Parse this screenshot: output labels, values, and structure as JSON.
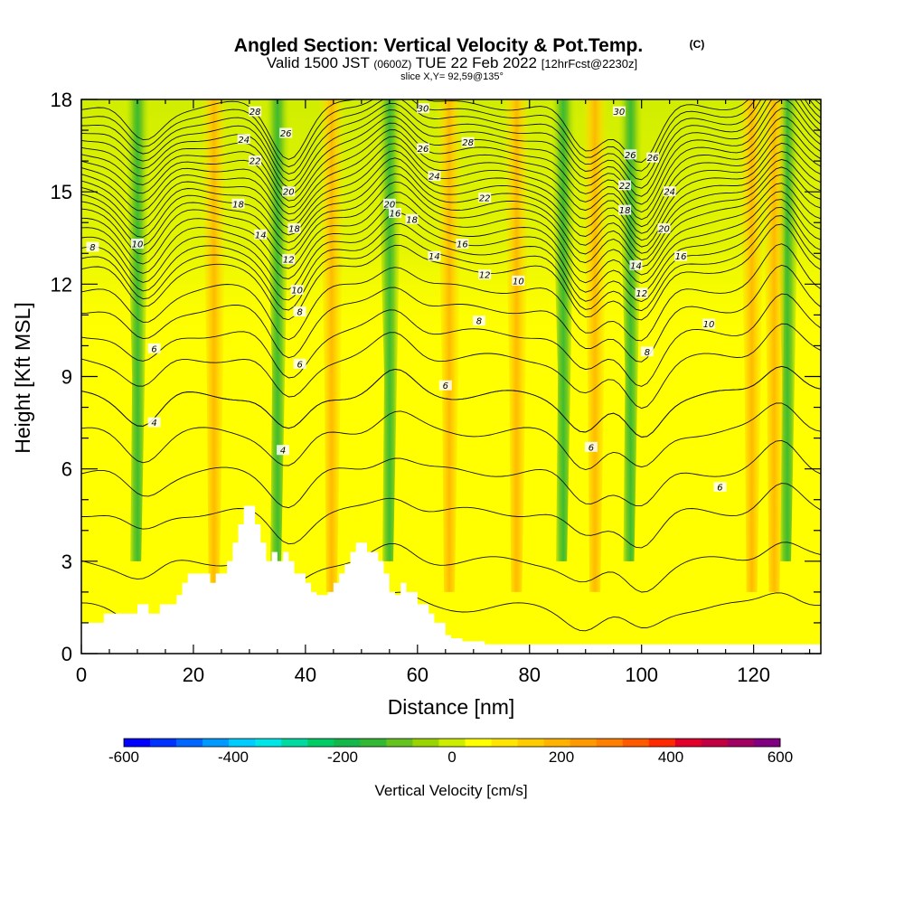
{
  "header": {
    "title": "Angled Section: Vertical Velocity & Pot.Temp.",
    "title_unit": "(C)",
    "valid_prefix": "Valid 1500 JST",
    "valid_utc": "(0600Z)",
    "valid_date": "TUE 22 Feb 2022",
    "forecast": "[12hrFcst@2230z]",
    "slice": "slice X,Y= 92,59@135°"
  },
  "chart_data": {
    "type": "contour-section",
    "xlabel": "Distance [nm]",
    "ylabel": "Height [Kft MSL]",
    "xlim": [
      0,
      132
    ],
    "ylim": [
      0,
      18
    ],
    "x_ticks": [
      0,
      20,
      40,
      60,
      80,
      100,
      120
    ],
    "y_ticks": [
      0,
      3,
      6,
      9,
      12,
      15,
      18
    ],
    "colorbar": {
      "title": "Vertical Velocity [cm/s]",
      "range": [
        -600,
        600
      ],
      "ticks": [
        -600,
        -400,
        -200,
        0,
        200,
        400,
        600
      ],
      "colors": [
        "#0000ff",
        "#0033ff",
        "#0066ff",
        "#0099ff",
        "#00ccff",
        "#00e5e5",
        "#00d9a0",
        "#00cc66",
        "#14b84a",
        "#33b833",
        "#66c21f",
        "#99d400",
        "#ccec00",
        "#ffff00",
        "#ffe500",
        "#ffcc00",
        "#ffb200",
        "#ff9900",
        "#ff7f00",
        "#ff5a00",
        "#ff2a00",
        "#e0002a",
        "#c00040",
        "#a00060",
        "#800080"
      ]
    },
    "terrain": {
      "x": [
        0,
        3,
        4,
        10,
        11,
        12,
        14,
        17,
        18,
        19,
        20,
        23,
        24,
        26,
        27,
        28,
        29,
        31,
        32,
        33,
        34,
        35,
        36,
        37,
        38,
        40,
        41,
        42,
        44,
        45,
        46,
        47,
        48,
        49,
        51,
        53,
        54,
        55,
        56,
        57,
        58,
        60,
        62,
        63,
        65,
        66,
        68,
        72,
        75,
        132
      ],
      "height_kft": [
        1.0,
        1.0,
        1.3,
        1.6,
        1.6,
        1.3,
        1.6,
        1.9,
        2.3,
        2.6,
        2.6,
        2.3,
        2.6,
        3.0,
        3.6,
        4.2,
        4.8,
        4.2,
        3.6,
        3.0,
        3.3,
        3.0,
        3.3,
        3.0,
        2.6,
        2.3,
        2.0,
        1.9,
        2.0,
        2.3,
        2.6,
        2.9,
        3.3,
        3.6,
        3.3,
        3.0,
        2.6,
        2.0,
        1.9,
        2.3,
        2.0,
        1.6,
        1.3,
        1.0,
        0.6,
        0.5,
        0.4,
        0.3,
        0.3,
        0.3
      ]
    },
    "theta_contours": [
      {
        "level": 4,
        "mean_height_kft": 7.2
      },
      {
        "level": 6,
        "mean_height_kft": 9.6
      },
      {
        "level": 8,
        "mean_height_kft": 11.2
      },
      {
        "level": 10,
        "mean_height_kft": 12.5
      },
      {
        "level": 12,
        "mean_height_kft": 13.1
      },
      {
        "level": 14,
        "mean_height_kft": 13.7
      },
      {
        "level": 16,
        "mean_height_kft": 14.3
      },
      {
        "level": 18,
        "mean_height_kft": 14.8
      },
      {
        "level": 20,
        "mean_height_kft": 15.3
      },
      {
        "level": 22,
        "mean_height_kft": 15.8
      },
      {
        "level": 24,
        "mean_height_kft": 16.3
      },
      {
        "level": 26,
        "mean_height_kft": 16.8
      },
      {
        "level": 28,
        "mean_height_kft": 17.3
      },
      {
        "level": 30,
        "mean_height_kft": 17.8
      }
    ],
    "updraft_bands_x": [
      11,
      36,
      56,
      87,
      99,
      127
    ],
    "downdraft_bands_x": [
      24,
      45,
      66,
      78,
      92,
      120,
      124
    ],
    "contour_labels": [
      {
        "text": "8",
        "x": 2,
        "y": 13.2
      },
      {
        "text": "10",
        "x": 10,
        "y": 13.3
      },
      {
        "text": "28",
        "x": 31,
        "y": 17.6
      },
      {
        "text": "26",
        "x": 36.5,
        "y": 16.9
      },
      {
        "text": "24",
        "x": 29,
        "y": 16.7
      },
      {
        "text": "22",
        "x": 31,
        "y": 16.0
      },
      {
        "text": "20",
        "x": 37,
        "y": 15.0
      },
      {
        "text": "18",
        "x": 28,
        "y": 14.6
      },
      {
        "text": "18",
        "x": 38,
        "y": 13.8
      },
      {
        "text": "16",
        "x": 56,
        "y": 14.3
      },
      {
        "text": "14",
        "x": 32,
        "y": 13.6
      },
      {
        "text": "12",
        "x": 37,
        "y": 12.8
      },
      {
        "text": "10",
        "x": 38.5,
        "y": 11.8
      },
      {
        "text": "8",
        "x": 39,
        "y": 11.1
      },
      {
        "text": "6",
        "x": 13,
        "y": 9.9
      },
      {
        "text": "6",
        "x": 39,
        "y": 9.4
      },
      {
        "text": "4",
        "x": 13,
        "y": 7.5
      },
      {
        "text": "4",
        "x": 36,
        "y": 6.6
      },
      {
        "text": "30",
        "x": 61,
        "y": 17.7
      },
      {
        "text": "28",
        "x": 69,
        "y": 16.6
      },
      {
        "text": "26",
        "x": 61,
        "y": 16.4
      },
      {
        "text": "24",
        "x": 63,
        "y": 15.5
      },
      {
        "text": "22",
        "x": 72,
        "y": 14.8
      },
      {
        "text": "20",
        "x": 55,
        "y": 14.6
      },
      {
        "text": "18",
        "x": 59,
        "y": 14.1
      },
      {
        "text": "16",
        "x": 68,
        "y": 13.3
      },
      {
        "text": "14",
        "x": 63,
        "y": 12.9
      },
      {
        "text": "12",
        "x": 72,
        "y": 12.3
      },
      {
        "text": "10",
        "x": 78,
        "y": 12.1
      },
      {
        "text": "8",
        "x": 71,
        "y": 10.8
      },
      {
        "text": "6",
        "x": 65,
        "y": 8.7
      },
      {
        "text": "6",
        "x": 91,
        "y": 6.7
      },
      {
        "text": "30",
        "x": 96,
        "y": 17.6
      },
      {
        "text": "26",
        "x": 98,
        "y": 16.2
      },
      {
        "text": "26",
        "x": 102,
        "y": 16.1
      },
      {
        "text": "24",
        "x": 105,
        "y": 15.0
      },
      {
        "text": "22",
        "x": 97,
        "y": 15.2
      },
      {
        "text": "20",
        "x": 104,
        "y": 13.8
      },
      {
        "text": "18",
        "x": 97,
        "y": 14.4
      },
      {
        "text": "16",
        "x": 107,
        "y": 12.9
      },
      {
        "text": "14",
        "x": 99,
        "y": 12.6
      },
      {
        "text": "12",
        "x": 100,
        "y": 11.7
      },
      {
        "text": "10",
        "x": 112,
        "y": 10.7
      },
      {
        "text": "8",
        "x": 101,
        "y": 9.8
      },
      {
        "text": "6",
        "x": 114,
        "y": 5.4
      }
    ]
  }
}
